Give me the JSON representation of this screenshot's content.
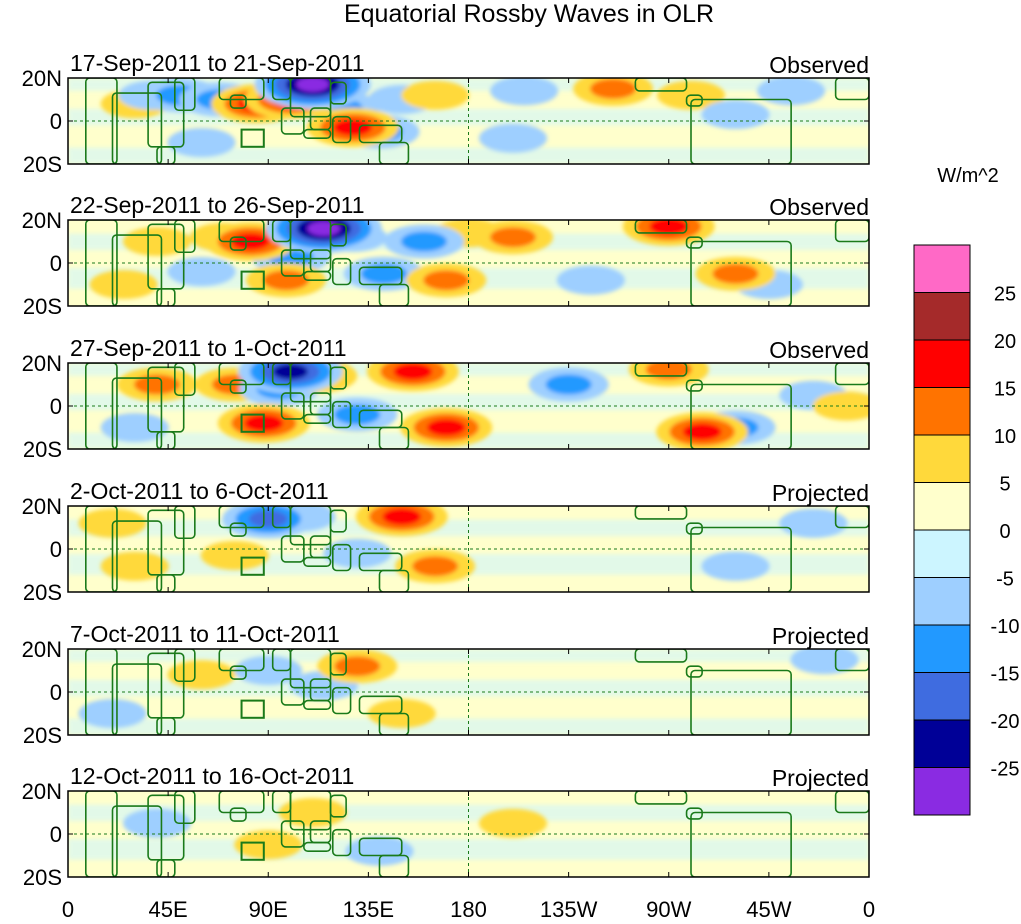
{
  "chart_data": {
    "type": "heatmap",
    "title": "Equatorial Rossby Waves in OLR",
    "colorbar": {
      "units": "W/m^2",
      "tick_labels": [
        "25",
        "20",
        "15",
        "10",
        "5",
        "0",
        "-5",
        "-10",
        "-15",
        "-20",
        "-25"
      ],
      "colors": [
        "#ff69c6",
        "#a52a2a",
        "#ff0000",
        "#ff7300",
        "#ffd93b",
        "#ffffcc",
        "#ccf5ff",
        "#9ecfff",
        "#2299ff",
        "#3f6ce0",
        "#000097",
        "#8a2be2"
      ]
    },
    "x_tick_labels": [
      "0",
      "45E",
      "90E",
      "135E",
      "180",
      "135W",
      "90W",
      "45W",
      "0"
    ],
    "y_tick_labels": [
      "20N",
      "0",
      "20S"
    ],
    "longitude_range": [
      0,
      360
    ],
    "latitude_range": [
      -20,
      20
    ],
    "panels": [
      {
        "date_range": "17-Sep-2011 to 21-Sep-2011",
        "label": "Observed",
        "anomalies": [
          {
            "lon": 30,
            "lat": 8,
            "value": 5
          },
          {
            "lon": 38,
            "lat": 12,
            "value": -5
          },
          {
            "lon": 50,
            "lat": 12,
            "value": -10
          },
          {
            "lon": 68,
            "lat": 10,
            "value": -10
          },
          {
            "lon": 85,
            "lat": 8,
            "value": 15
          },
          {
            "lon": 100,
            "lat": 10,
            "value": 15
          },
          {
            "lon": 110,
            "lat": 17,
            "value": -25
          },
          {
            "lon": 122,
            "lat": 6,
            "value": -10
          },
          {
            "lon": 128,
            "lat": -3,
            "value": 15
          },
          {
            "lon": 140,
            "lat": -5,
            "value": -10
          },
          {
            "lon": 150,
            "lat": 10,
            "value": -5
          },
          {
            "lon": 165,
            "lat": 12,
            "value": 5
          },
          {
            "lon": 205,
            "lat": 14,
            "value": -5
          },
          {
            "lon": 245,
            "lat": 15,
            "value": 10
          },
          {
            "lon": 280,
            "lat": 12,
            "value": 5
          },
          {
            "lon": 300,
            "lat": 3,
            "value": -5
          },
          {
            "lon": 325,
            "lat": 14,
            "value": -5
          },
          {
            "lon": 60,
            "lat": -10,
            "value": -5
          },
          {
            "lon": 200,
            "lat": -8,
            "value": -5
          }
        ]
      },
      {
        "date_range": "22-Sep-2011 to 26-Sep-2011",
        "label": "Observed",
        "anomalies": [
          {
            "lon": 82,
            "lat": 10,
            "value": 15
          },
          {
            "lon": 70,
            "lat": 12,
            "value": 5
          },
          {
            "lon": 100,
            "lat": 3,
            "value": -10
          },
          {
            "lon": 115,
            "lat": 16,
            "value": -25
          },
          {
            "lon": 128,
            "lat": 12,
            "value": -5
          },
          {
            "lon": 142,
            "lat": -5,
            "value": -10
          },
          {
            "lon": 170,
            "lat": -8,
            "value": 10
          },
          {
            "lon": 160,
            "lat": 10,
            "value": -10
          },
          {
            "lon": 200,
            "lat": 12,
            "value": 10
          },
          {
            "lon": 180,
            "lat": 14,
            "value": 5
          },
          {
            "lon": 98,
            "lat": -8,
            "value": 10
          },
          {
            "lon": 60,
            "lat": -4,
            "value": -5
          },
          {
            "lon": 270,
            "lat": 17,
            "value": 15
          },
          {
            "lon": 300,
            "lat": -5,
            "value": 10
          },
          {
            "lon": 315,
            "lat": -10,
            "value": -5
          },
          {
            "lon": 25,
            "lat": -10,
            "value": 5
          },
          {
            "lon": 235,
            "lat": -8,
            "value": -5
          },
          {
            "lon": 40,
            "lat": 10,
            "value": 5
          }
        ]
      },
      {
        "date_range": "27-Sep-2011 to 1-Oct-2011",
        "label": "Observed",
        "anomalies": [
          {
            "lon": 75,
            "lat": 10,
            "value": 10
          },
          {
            "lon": 95,
            "lat": 8,
            "value": -10
          },
          {
            "lon": 100,
            "lat": 16,
            "value": -20
          },
          {
            "lon": 112,
            "lat": 14,
            "value": 10
          },
          {
            "lon": 155,
            "lat": 16,
            "value": 15
          },
          {
            "lon": 170,
            "lat": -10,
            "value": 15
          },
          {
            "lon": 88,
            "lat": -8,
            "value": 15
          },
          {
            "lon": 130,
            "lat": -4,
            "value": -10
          },
          {
            "lon": 225,
            "lat": 10,
            "value": -10
          },
          {
            "lon": 270,
            "lat": 17,
            "value": 10
          },
          {
            "lon": 285,
            "lat": -12,
            "value": 15
          },
          {
            "lon": 300,
            "lat": -10,
            "value": -10
          },
          {
            "lon": 30,
            "lat": -10,
            "value": -5
          },
          {
            "lon": 40,
            "lat": 10,
            "value": 10
          },
          {
            "lon": 335,
            "lat": 5,
            "value": -5
          },
          {
            "lon": 350,
            "lat": 0,
            "value": 5
          }
        ]
      },
      {
        "date_range": "2-Oct-2011 to 6-Oct-2011",
        "label": "Projected",
        "anomalies": [
          {
            "lon": 90,
            "lat": 14,
            "value": -15
          },
          {
            "lon": 105,
            "lat": 15,
            "value": -5
          },
          {
            "lon": 150,
            "lat": 15,
            "value": 15
          },
          {
            "lon": 165,
            "lat": -8,
            "value": 10
          },
          {
            "lon": 75,
            "lat": -3,
            "value": 5
          },
          {
            "lon": 130,
            "lat": -2,
            "value": -5
          },
          {
            "lon": 300,
            "lat": -8,
            "value": -5
          },
          {
            "lon": 335,
            "lat": 12,
            "value": -5
          },
          {
            "lon": 30,
            "lat": -8,
            "value": 5
          },
          {
            "lon": 20,
            "lat": 12,
            "value": 5
          }
        ]
      },
      {
        "date_range": "7-Oct-2011 to 11-Oct-2011",
        "label": "Projected",
        "anomalies": [
          {
            "lon": 130,
            "lat": 12,
            "value": 10
          },
          {
            "lon": 115,
            "lat": 3,
            "value": -5
          },
          {
            "lon": 150,
            "lat": -10,
            "value": 5
          },
          {
            "lon": 90,
            "lat": 10,
            "value": -5
          },
          {
            "lon": 60,
            "lat": 8,
            "value": 5
          },
          {
            "lon": 20,
            "lat": -10,
            "value": -5
          },
          {
            "lon": 340,
            "lat": 15,
            "value": -5
          }
        ]
      },
      {
        "date_range": "12-Oct-2011 to 16-Oct-2011",
        "label": "Projected",
        "anomalies": [
          {
            "lon": 110,
            "lat": 10,
            "value": 5
          },
          {
            "lon": 140,
            "lat": -8,
            "value": -5
          },
          {
            "lon": 90,
            "lat": -5,
            "value": 5
          },
          {
            "lon": 40,
            "lat": 5,
            "value": -5
          },
          {
            "lon": 200,
            "lat": 5,
            "value": 5
          }
        ]
      }
    ]
  }
}
